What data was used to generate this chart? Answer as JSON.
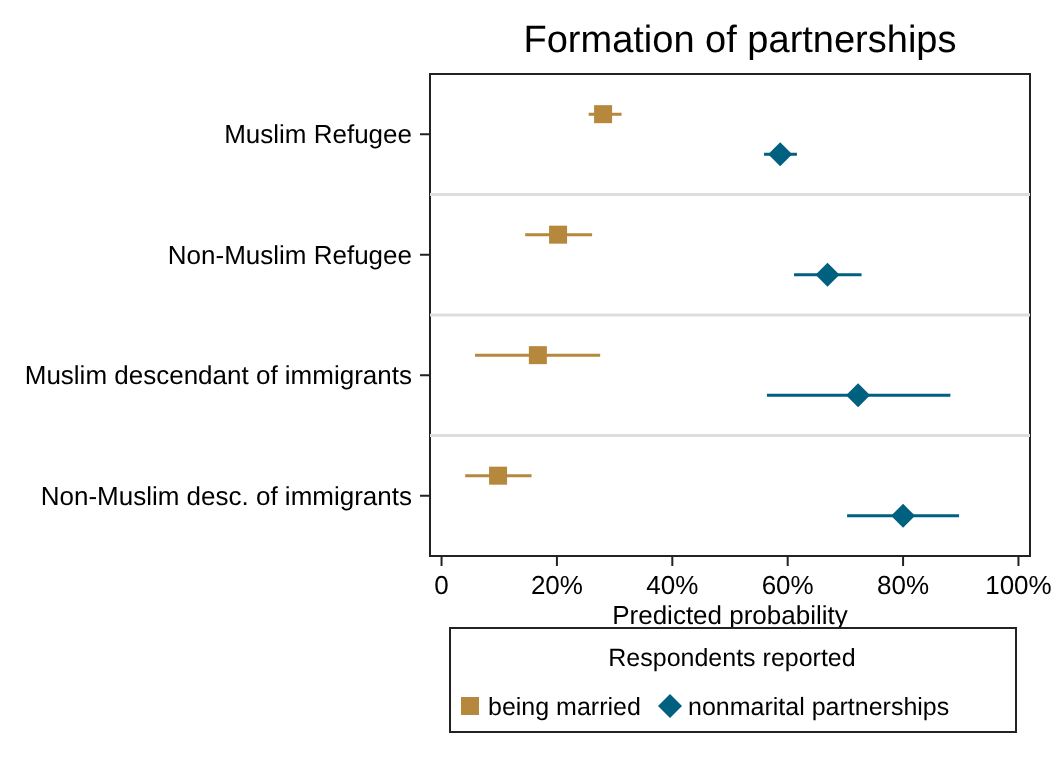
{
  "chart_data": {
    "type": "scatter",
    "orientation": "horizontal",
    "title": "Formation of partnerships",
    "xlabel": "Predicted probability",
    "legend_title": "Respondents reported",
    "categories": [
      "Muslim Refugee",
      "Non-Muslim Refugee",
      "Muslim descendant of immigrants",
      "Non-Muslim desc. of immigrants"
    ],
    "xlim": [
      -2,
      102
    ],
    "xticks": [
      {
        "value": 0,
        "label": "0"
      },
      {
        "value": 20,
        "label": "20%"
      },
      {
        "value": 40,
        "label": "40%"
      },
      {
        "value": 60,
        "label": "60%"
      },
      {
        "value": 80,
        "label": "80%"
      },
      {
        "value": 100,
        "label": "100%"
      }
    ],
    "series": [
      {
        "name": "being married",
        "color": "#b5883e",
        "marker": "square",
        "values": [
          28,
          20.2,
          16.7,
          9.8
        ],
        "errors": [
          [
            25.5,
            31.2
          ],
          [
            14.5,
            26.1
          ],
          [
            5.8,
            27.5
          ],
          [
            4.1,
            15.6
          ]
        ]
      },
      {
        "name": "nonmarital partnerships",
        "color": "#00607f",
        "marker": "diamond",
        "values": [
          58.7,
          66.9,
          72.2,
          80
        ],
        "errors": [
          [
            55.9,
            61.6
          ],
          [
            61.1,
            72.8
          ],
          [
            56.4,
            88.2
          ],
          [
            70.3,
            89.7
          ]
        ]
      }
    ],
    "grid": "y",
    "legend": "bottom"
  }
}
